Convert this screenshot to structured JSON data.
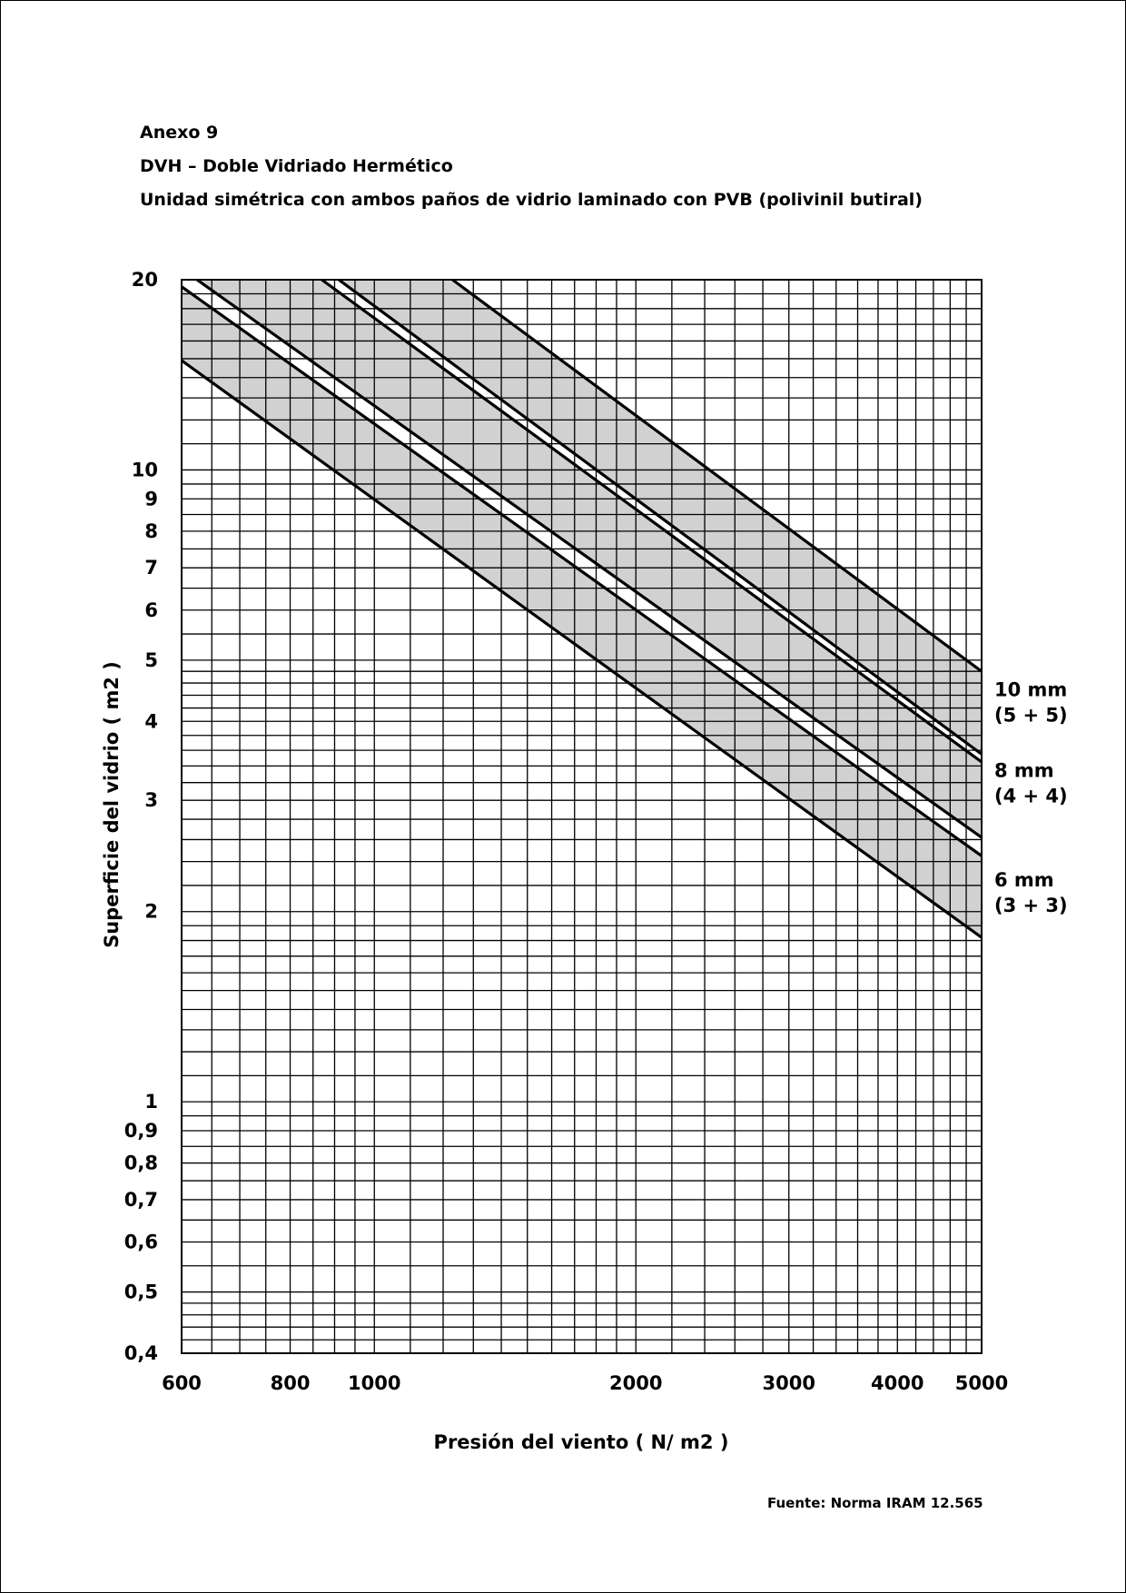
{
  "header": {
    "annex": "Anexo 9",
    "title": "DVH – Doble Vidriado Hermético",
    "subtitle": "Unidad simétrica con ambos paños de vidrio laminado con PVB (polivinil butiral)"
  },
  "source": "Fuente: Norma IRAM 12.565",
  "chart_data": {
    "type": "area",
    "x_scale": "log",
    "y_scale": "log",
    "xlabel": "Presión del viento ( N/ m2 )",
    "ylabel": "Superficie del vidrio ( m2 )",
    "xlim": [
      600,
      5000
    ],
    "ylim": [
      0.4,
      20
    ],
    "x_ticks": [
      {
        "value": 600,
        "label": "600"
      },
      {
        "value": 800,
        "label": "800"
      },
      {
        "value": 1000,
        "label": "1000"
      },
      {
        "value": 2000,
        "label": "2000"
      },
      {
        "value": 3000,
        "label": "3000"
      },
      {
        "value": 4000,
        "label": "4000"
      },
      {
        "value": 5000,
        "label": "5000"
      }
    ],
    "y_ticks": [
      {
        "value": 20,
        "label": "20"
      },
      {
        "value": 10,
        "label": "10"
      },
      {
        "value": 9,
        "label": "9"
      },
      {
        "value": 8,
        "label": "8"
      },
      {
        "value": 7,
        "label": "7"
      },
      {
        "value": 6,
        "label": "6"
      },
      {
        "value": 5,
        "label": "5"
      },
      {
        "value": 4,
        "label": "4"
      },
      {
        "value": 3,
        "label": "3"
      },
      {
        "value": 2,
        "label": "2"
      },
      {
        "value": 1,
        "label": "1"
      },
      {
        "value": 0.9,
        "label": "0,9"
      },
      {
        "value": 0.8,
        "label": "0,8"
      },
      {
        "value": 0.7,
        "label": "0,7"
      },
      {
        "value": 0.6,
        "label": "0,6"
      },
      {
        "value": 0.5,
        "label": "0,5"
      },
      {
        "value": 0.4,
        "label": "0,4"
      }
    ],
    "grid_x": [
      600,
      650,
      700,
      750,
      800,
      850,
      900,
      950,
      1000,
      1100,
      1200,
      1300,
      1400,
      1500,
      1600,
      1700,
      1800,
      1900,
      2000,
      2200,
      2400,
      2600,
      2800,
      3000,
      3200,
      3400,
      3600,
      3800,
      4000,
      4200,
      4400,
      4600,
      4800,
      5000
    ],
    "grid_y": [
      0.4,
      0.42,
      0.44,
      0.46,
      0.48,
      0.5,
      0.55,
      0.6,
      0.65,
      0.7,
      0.75,
      0.8,
      0.85,
      0.9,
      0.95,
      1,
      1.1,
      1.2,
      1.3,
      1.4,
      1.5,
      1.6,
      1.7,
      1.8,
      1.9,
      2,
      2.2,
      2.4,
      2.6,
      2.8,
      3,
      3.2,
      3.4,
      3.6,
      3.8,
      4,
      4.2,
      4.4,
      4.6,
      4.8,
      5,
      5.5,
      6,
      6.5,
      7,
      7.5,
      8,
      8.5,
      9,
      9.5,
      10,
      11,
      12,
      13,
      14,
      15,
      16,
      17,
      18,
      19,
      20
    ],
    "fill_color": "#c9c9c9",
    "line_color": "#000000",
    "series": [
      {
        "label_lines": [
          "6 mm",
          "(3 + 3)"
        ],
        "label_y": 2.15,
        "lower": {
          "x": [
            600,
            5000
          ],
          "y": [
            14.9,
            1.82
          ]
        },
        "upper": {
          "x": [
            600,
            5000
          ],
          "y": [
            19.5,
            2.45
          ]
        }
      },
      {
        "label_lines": [
          "8 mm",
          "(4 + 4)"
        ],
        "label_y": 3.2,
        "lower": {
          "x": [
            625,
            5000
          ],
          "y": [
            20,
            2.62
          ]
        },
        "upper": {
          "x": [
            870,
            5000
          ],
          "y": [
            20,
            3.45
          ]
        }
      },
      {
        "label_lines": [
          "10 mm",
          "(5 + 5)"
        ],
        "label_y": 4.3,
        "lower": {
          "x": [
            910,
            5000
          ],
          "y": [
            20,
            3.55
          ]
        },
        "upper": {
          "x": [
            1230,
            5000
          ],
          "y": [
            20,
            4.8
          ]
        }
      }
    ]
  }
}
